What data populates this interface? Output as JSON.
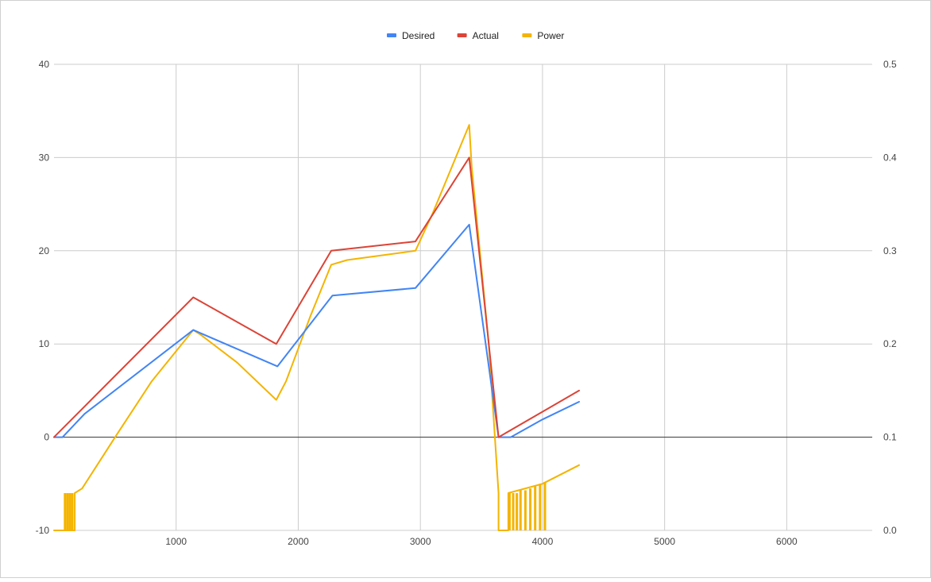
{
  "chart_data": {
    "type": "line",
    "title": "",
    "xlabel": "",
    "ylabel": "",
    "y2label": "",
    "grid": true,
    "legend_position": "top",
    "xlim": [
      0,
      6700
    ],
    "ylim": [
      -10,
      40
    ],
    "y2lim": [
      0.0,
      0.5
    ],
    "x_ticks": [
      "1000",
      "2000",
      "3000",
      "4000",
      "5000",
      "6000"
    ],
    "y_ticks": [
      "40",
      "30",
      "20",
      "10",
      "0",
      "-10"
    ],
    "y2_ticks": [
      "0.5",
      "0.4",
      "0.3",
      "0.2",
      "0.1",
      "0.0"
    ],
    "series": [
      {
        "name": "Desired",
        "axis": "left",
        "color": "#4285f4",
        "points": [
          [
            0,
            0
          ],
          [
            70,
            0
          ],
          [
            250,
            2.5
          ],
          [
            1140,
            11.5
          ],
          [
            1830,
            7.6
          ],
          [
            2280,
            15.2
          ],
          [
            2960,
            16.0
          ],
          [
            3400,
            22.8
          ],
          [
            3640,
            0
          ],
          [
            3740,
            0
          ],
          [
            4000,
            1.9
          ],
          [
            4300,
            3.8
          ]
        ]
      },
      {
        "name": "Actual",
        "axis": "left",
        "color": "#db4437",
        "points": [
          [
            0,
            0
          ],
          [
            1140,
            15.0
          ],
          [
            1820,
            10.0
          ],
          [
            2270,
            20.0
          ],
          [
            2960,
            21.0
          ],
          [
            3400,
            30.0
          ],
          [
            3640,
            0
          ],
          [
            4300,
            5.0
          ]
        ]
      },
      {
        "name": "Power",
        "axis": "right",
        "color": "#f4b400",
        "points": [
          [
            0,
            0.0
          ],
          [
            170,
            0.0
          ],
          [
            170,
            0.04
          ],
          [
            230,
            0.045
          ],
          [
            500,
            0.1
          ],
          [
            800,
            0.16
          ],
          [
            1140,
            0.215
          ],
          [
            1200,
            0.21
          ],
          [
            1500,
            0.18
          ],
          [
            1820,
            0.14
          ],
          [
            1900,
            0.16
          ],
          [
            2100,
            0.23
          ],
          [
            2270,
            0.285
          ],
          [
            2400,
            0.29
          ],
          [
            2960,
            0.3
          ],
          [
            3100,
            0.34
          ],
          [
            3400,
            0.435
          ],
          [
            3420,
            0.39
          ],
          [
            3560,
            0.2
          ],
          [
            3640,
            0.04
          ],
          [
            3640,
            0.0
          ],
          [
            3720,
            0.0
          ],
          [
            3720,
            0.04
          ],
          [
            4000,
            0.05
          ],
          [
            4300,
            0.07
          ]
        ],
        "spikes": [
          [
            90,
            0.04
          ],
          [
            110,
            0.04
          ],
          [
            130,
            0.04
          ],
          [
            150,
            0.04
          ],
          [
            3730,
            0.04
          ],
          [
            3760,
            0.04
          ],
          [
            3790,
            0.04
          ],
          [
            3820,
            0.043
          ],
          [
            3860,
            0.043
          ],
          [
            3900,
            0.045
          ],
          [
            3940,
            0.048
          ],
          [
            3980,
            0.05
          ],
          [
            4020,
            0.052
          ]
        ]
      }
    ]
  }
}
